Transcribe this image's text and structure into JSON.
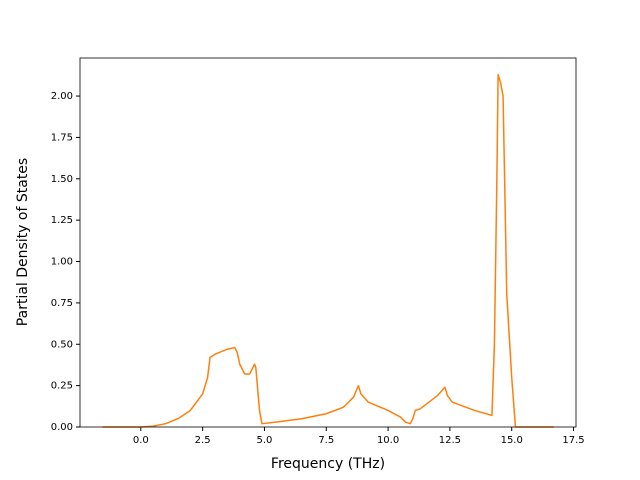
{
  "chart_data": {
    "type": "line",
    "xlabel": "Frequency (THz)",
    "ylabel": "Partial Density of States",
    "x": [
      -1.55,
      0,
      0.5,
      1.0,
      1.5,
      2.0,
      2.5,
      2.7,
      2.8,
      3.0,
      3.5,
      3.8,
      3.9,
      4.0,
      4.2,
      4.4,
      4.6,
      4.65,
      4.8,
      4.9,
      5.5,
      6.5,
      7.5,
      8.2,
      8.6,
      8.8,
      8.9,
      9.2,
      10.0,
      10.5,
      10.7,
      10.9,
      11.0,
      11.1,
      11.3,
      12.0,
      12.3,
      12.4,
      12.6,
      13.5,
      14.2,
      14.3,
      14.4,
      14.45,
      14.55,
      14.65,
      14.8,
      15.0,
      15.15,
      16.7
    ],
    "series": [
      {
        "color": "#ff7f0e",
        "values": [
          0,
          0,
          0.005,
          0.02,
          0.05,
          0.1,
          0.2,
          0.3,
          0.42,
          0.44,
          0.47,
          0.48,
          0.45,
          0.38,
          0.32,
          0.32,
          0.38,
          0.36,
          0.1,
          0.02,
          0.03,
          0.05,
          0.08,
          0.12,
          0.18,
          0.25,
          0.2,
          0.15,
          0.1,
          0.06,
          0.03,
          0.02,
          0.05,
          0.1,
          0.11,
          0.19,
          0.24,
          0.19,
          0.15,
          0.1,
          0.07,
          0.5,
          1.5,
          2.13,
          2.08,
          2.0,
          0.8,
          0.3,
          0,
          0
        ]
      }
    ],
    "xlim": [
      -2.46,
      17.6
    ],
    "xticks": [
      {
        "value": 0,
        "label": "0.0"
      },
      2.5,
      {
        "value": 5,
        "label": "5.0"
      },
      7.5,
      {
        "value": 10,
        "label": "10.0"
      },
      12.5,
      {
        "value": 15,
        "label": "15.0"
      },
      17.5
    ],
    "ylim": [
      0,
      2.23
    ],
    "yticks": [
      {
        "value": 0,
        "label": "0.00"
      },
      0.25,
      {
        "value": 0.5,
        "label": "0.50"
      },
      0.75,
      {
        "value": 1,
        "label": "1.00"
      },
      1.25,
      {
        "value": 1.5,
        "label": "1.50"
      },
      1.75,
      {
        "value": 2,
        "label": "2.00"
      }
    ]
  }
}
